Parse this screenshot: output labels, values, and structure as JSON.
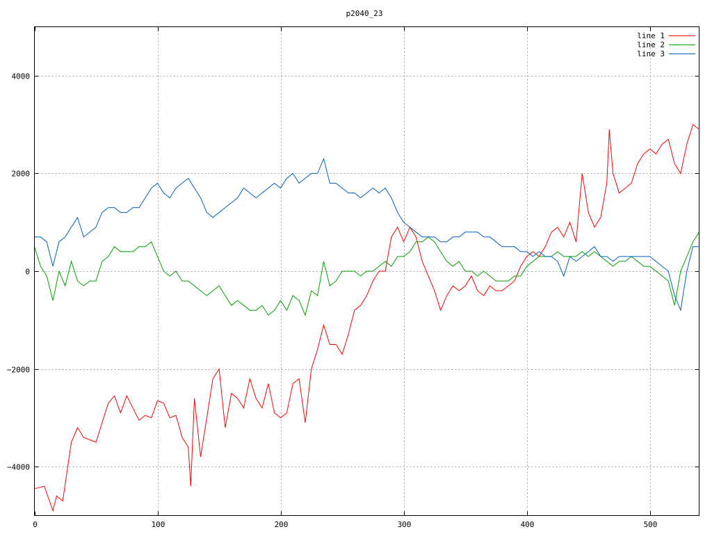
{
  "chart_data": {
    "type": "line",
    "title": "p2040_23",
    "xlabel": "",
    "ylabel": "",
    "xlim": [
      0,
      540
    ],
    "ylim": [
      -5000,
      5000
    ],
    "xticks": [
      0,
      100,
      200,
      300,
      400,
      500
    ],
    "yticks": [
      -4000,
      -2000,
      0,
      2000,
      4000
    ],
    "grid": true,
    "legend_position": "top-right",
    "series": [
      {
        "name": "line 1",
        "color": "#ff0000",
        "x": [
          0,
          8,
          15,
          18,
          23,
          30,
          35,
          40,
          45,
          50,
          55,
          60,
          65,
          70,
          75,
          80,
          85,
          90,
          95,
          100,
          105,
          110,
          115,
          120,
          125,
          127,
          130,
          135,
          140,
          145,
          150,
          155,
          160,
          165,
          170,
          175,
          180,
          185,
          190,
          195,
          200,
          205,
          210,
          215,
          220,
          225,
          230,
          235,
          240,
          245,
          250,
          255,
          260,
          265,
          270,
          275,
          280,
          285,
          290,
          295,
          300,
          305,
          310,
          315,
          320,
          325,
          330,
          335,
          340,
          345,
          350,
          355,
          360,
          365,
          370,
          375,
          380,
          385,
          390,
          395,
          400,
          405,
          410,
          415,
          420,
          425,
          430,
          435,
          440,
          445,
          450,
          455,
          460,
          465,
          467,
          470,
          475,
          480,
          485,
          490,
          495,
          500,
          505,
          510,
          515,
          520,
          525,
          530,
          535,
          540
        ],
        "values": [
          -4450,
          -4400,
          -4900,
          -4600,
          -4700,
          -3500,
          -3200,
          -3400,
          -3450,
          -3500,
          -3100,
          -2700,
          -2550,
          -2900,
          -2550,
          -2800,
          -3050,
          -2950,
          -3000,
          -2650,
          -2700,
          -3000,
          -2950,
          -3400,
          -3600,
          -4400,
          -2600,
          -3800,
          -3000,
          -2200,
          -2000,
          -3200,
          -2500,
          -2600,
          -2800,
          -2200,
          -2600,
          -2800,
          -2300,
          -2900,
          -3000,
          -2900,
          -2300,
          -2200,
          -3100,
          -2000,
          -1600,
          -1100,
          -1500,
          -1500,
          -1700,
          -1300,
          -800,
          -700,
          -500,
          -200,
          0,
          0,
          700,
          900,
          600,
          900,
          700,
          200,
          -100,
          -400,
          -800,
          -500,
          -300,
          -400,
          -300,
          -100,
          -400,
          -500,
          -300,
          -400,
          -400,
          -300,
          -200,
          100,
          300,
          400,
          300,
          500,
          800,
          900,
          700,
          1000,
          600,
          2000,
          1200,
          900,
          1100,
          1800,
          2900,
          2000,
          1600,
          1700,
          1800,
          2200,
          2400,
          2500,
          2400,
          2600,
          2700,
          2200,
          2000,
          2600,
          3000,
          2900
        ]
      },
      {
        "name": "line 2",
        "color": "#00a000",
        "x": [
          0,
          5,
          10,
          15,
          20,
          25,
          30,
          35,
          40,
          45,
          50,
          55,
          60,
          65,
          70,
          75,
          80,
          85,
          90,
          95,
          100,
          105,
          110,
          115,
          120,
          125,
          130,
          135,
          140,
          145,
          150,
          155,
          160,
          165,
          170,
          175,
          180,
          185,
          190,
          195,
          200,
          205,
          210,
          215,
          220,
          225,
          230,
          235,
          240,
          245,
          250,
          255,
          260,
          265,
          270,
          275,
          280,
          285,
          290,
          295,
          300,
          305,
          310,
          315,
          320,
          325,
          330,
          335,
          340,
          345,
          350,
          355,
          360,
          365,
          370,
          375,
          380,
          385,
          390,
          395,
          400,
          405,
          410,
          415,
          420,
          425,
          430,
          435,
          440,
          445,
          450,
          455,
          460,
          465,
          470,
          475,
          480,
          485,
          490,
          495,
          500,
          505,
          510,
          515,
          520,
          525,
          530,
          535,
          540
        ],
        "values": [
          500,
          100,
          -100,
          -600,
          0,
          -300,
          200,
          -200,
          -300,
          -200,
          -200,
          200,
          300,
          500,
          400,
          400,
          400,
          500,
          500,
          600,
          300,
          0,
          -100,
          0,
          -200,
          -200,
          -300,
          -400,
          -500,
          -400,
          -300,
          -500,
          -700,
          -600,
          -700,
          -800,
          -800,
          -700,
          -900,
          -800,
          -600,
          -800,
          -500,
          -600,
          -900,
          -400,
          -500,
          200,
          -300,
          -200,
          0,
          0,
          0,
          -100,
          0,
          0,
          100,
          200,
          100,
          300,
          300,
          400,
          600,
          600,
          700,
          600,
          400,
          200,
          100,
          200,
          0,
          0,
          -100,
          0,
          -100,
          -200,
          -200,
          -200,
          -100,
          -100,
          100,
          200,
          300,
          300,
          300,
          400,
          300,
          300,
          300,
          400,
          300,
          400,
          300,
          200,
          100,
          200,
          200,
          300,
          200,
          100,
          100,
          0,
          -100,
          -200,
          -700,
          0,
          300,
          600,
          800
        ]
      },
      {
        "name": "line 3",
        "color": "#0060c0",
        "x": [
          0,
          5,
          10,
          13,
          15,
          20,
          25,
          30,
          35,
          40,
          45,
          50,
          55,
          60,
          65,
          70,
          75,
          80,
          85,
          90,
          95,
          100,
          105,
          110,
          115,
          120,
          125,
          130,
          135,
          140,
          145,
          150,
          155,
          160,
          165,
          170,
          175,
          180,
          185,
          190,
          195,
          200,
          205,
          210,
          215,
          220,
          225,
          230,
          235,
          240,
          245,
          250,
          255,
          260,
          265,
          270,
          275,
          280,
          285,
          290,
          295,
          300,
          305,
          310,
          315,
          320,
          325,
          330,
          335,
          340,
          345,
          350,
          355,
          360,
          365,
          370,
          375,
          380,
          385,
          390,
          395,
          400,
          405,
          410,
          415,
          420,
          425,
          430,
          435,
          440,
          445,
          450,
          455,
          460,
          465,
          470,
          475,
          480,
          485,
          490,
          495,
          500,
          505,
          510,
          515,
          520,
          525,
          530,
          535,
          540
        ],
        "values": [
          700,
          700,
          600,
          300,
          100,
          600,
          700,
          900,
          1100,
          700,
          800,
          900,
          1200,
          1300,
          1300,
          1200,
          1200,
          1300,
          1300,
          1500,
          1700,
          1800,
          1600,
          1500,
          1700,
          1800,
          1900,
          1700,
          1500,
          1200,
          1100,
          1200,
          1300,
          1400,
          1500,
          1700,
          1600,
          1500,
          1600,
          1700,
          1800,
          1700,
          1900,
          2000,
          1800,
          1900,
          2000,
          2000,
          2300,
          1800,
          1800,
          1700,
          1600,
          1600,
          1500,
          1600,
          1700,
          1600,
          1700,
          1500,
          1200,
          1000,
          900,
          800,
          700,
          700,
          700,
          600,
          600,
          700,
          700,
          800,
          800,
          800,
          700,
          700,
          600,
          500,
          500,
          500,
          400,
          400,
          300,
          400,
          300,
          300,
          200,
          -100,
          300,
          200,
          300,
          400,
          500,
          300,
          300,
          200,
          300,
          300,
          300,
          300,
          300,
          300,
          200,
          100,
          0,
          -500,
          -800,
          0,
          500,
          500
        ]
      }
    ]
  }
}
